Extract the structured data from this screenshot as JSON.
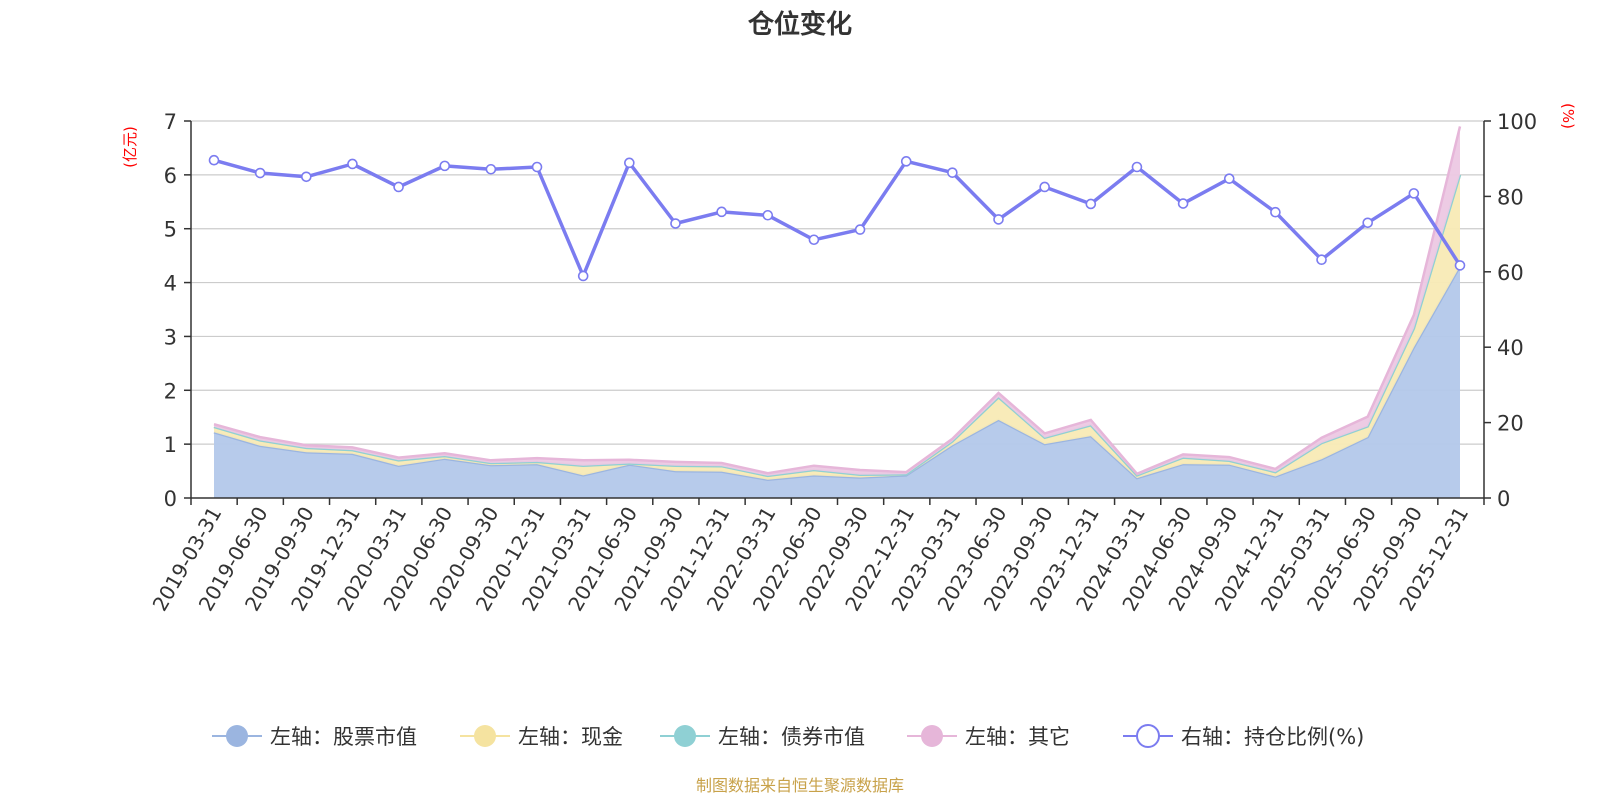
{
  "chart_data": {
    "type": "area",
    "title": "仓位变化",
    "left_axis_unit": "(亿元)",
    "right_axis_unit": "(%)",
    "left_ylim": [
      0,
      7
    ],
    "left_ticks": [
      "0",
      "1",
      "2",
      "3",
      "4",
      "5",
      "6",
      "7"
    ],
    "right_ylim": [
      0,
      100
    ],
    "right_ticks": [
      "0",
      "20",
      "40",
      "60",
      "80",
      "100"
    ],
    "grid": true,
    "legend_position": "bottom",
    "x": [
      "2019-03-31",
      "2019-06-30",
      "2019-09-30",
      "2019-12-31",
      "2020-03-31",
      "2020-06-30",
      "2020-09-30",
      "2020-12-31",
      "2021-03-31",
      "2021-06-30",
      "2021-09-30",
      "2021-12-31",
      "2022-03-31",
      "2022-06-30",
      "2022-09-30",
      "2022-12-31",
      "2023-03-31",
      "2023-06-30",
      "2023-09-30",
      "2023-12-31",
      "2024-03-31",
      "2024-06-30",
      "2024-09-30",
      "2024-12-31",
      "2025-03-31",
      "2025-06-30",
      "2025-09-30",
      "2025-12-31"
    ],
    "series": [
      {
        "name": "左轴：股票市值",
        "axis": "left",
        "kind": "stacked-area",
        "color": "#9bb5e0",
        "fill": "#b3c8ea",
        "values": [
          1.22,
          0.97,
          0.85,
          0.82,
          0.6,
          0.73,
          0.61,
          0.63,
          0.42,
          0.62,
          0.5,
          0.49,
          0.34,
          0.42,
          0.38,
          0.42,
          0.98,
          1.45,
          1.0,
          1.15,
          0.37,
          0.63,
          0.62,
          0.4,
          0.72,
          1.13,
          2.8,
          4.3
        ]
      },
      {
        "name": "左轴：现金",
        "axis": "left",
        "kind": "stacked-area",
        "color": "#f5e3a0",
        "fill": "#f8eab5",
        "values": [
          0.1,
          0.1,
          0.08,
          0.07,
          0.1,
          0.05,
          0.04,
          0.04,
          0.18,
          0.02,
          0.1,
          0.1,
          0.07,
          0.1,
          0.05,
          0.02,
          0.07,
          0.42,
          0.12,
          0.2,
          0.05,
          0.12,
          0.07,
          0.08,
          0.3,
          0.2,
          0.35,
          1.7
        ]
      },
      {
        "name": "左轴：债券市值",
        "axis": "left",
        "kind": "stacked-area",
        "color": "#8fd0d4",
        "fill": "#a8dcdf",
        "values": [
          0,
          0,
          0,
          0,
          0,
          0,
          0,
          0,
          0,
          0,
          0,
          0,
          0,
          0,
          0,
          0,
          0,
          0,
          0,
          0,
          0,
          0,
          0,
          0,
          0,
          0,
          0,
          0
        ]
      },
      {
        "name": "左轴：其它",
        "axis": "left",
        "kind": "stacked-area",
        "color": "#e6b6d9",
        "fill": "#ecc8e3",
        "values": [
          0.05,
          0.06,
          0.05,
          0.05,
          0.05,
          0.05,
          0.05,
          0.07,
          0.1,
          0.07,
          0.07,
          0.06,
          0.05,
          0.08,
          0.09,
          0.04,
          0.05,
          0.08,
          0.08,
          0.1,
          0.03,
          0.06,
          0.07,
          0.06,
          0.1,
          0.18,
          0.25,
          0.9
        ]
      },
      {
        "name": "右轴：持仓比例(%)",
        "axis": "right",
        "kind": "line",
        "color": "#7b7cf0",
        "values": [
          89.6,
          86.2,
          85.2,
          88.6,
          82.5,
          88.1,
          87.2,
          87.8,
          58.9,
          88.9,
          72.8,
          75.9,
          75.0,
          68.5,
          71.2,
          89.3,
          86.3,
          73.9,
          82.5,
          78.0,
          87.8,
          78.1,
          84.7,
          75.8,
          63.2,
          73.0,
          80.8,
          61.7
        ]
      }
    ],
    "source_note": "制图数据来自恒生聚源数据库"
  }
}
